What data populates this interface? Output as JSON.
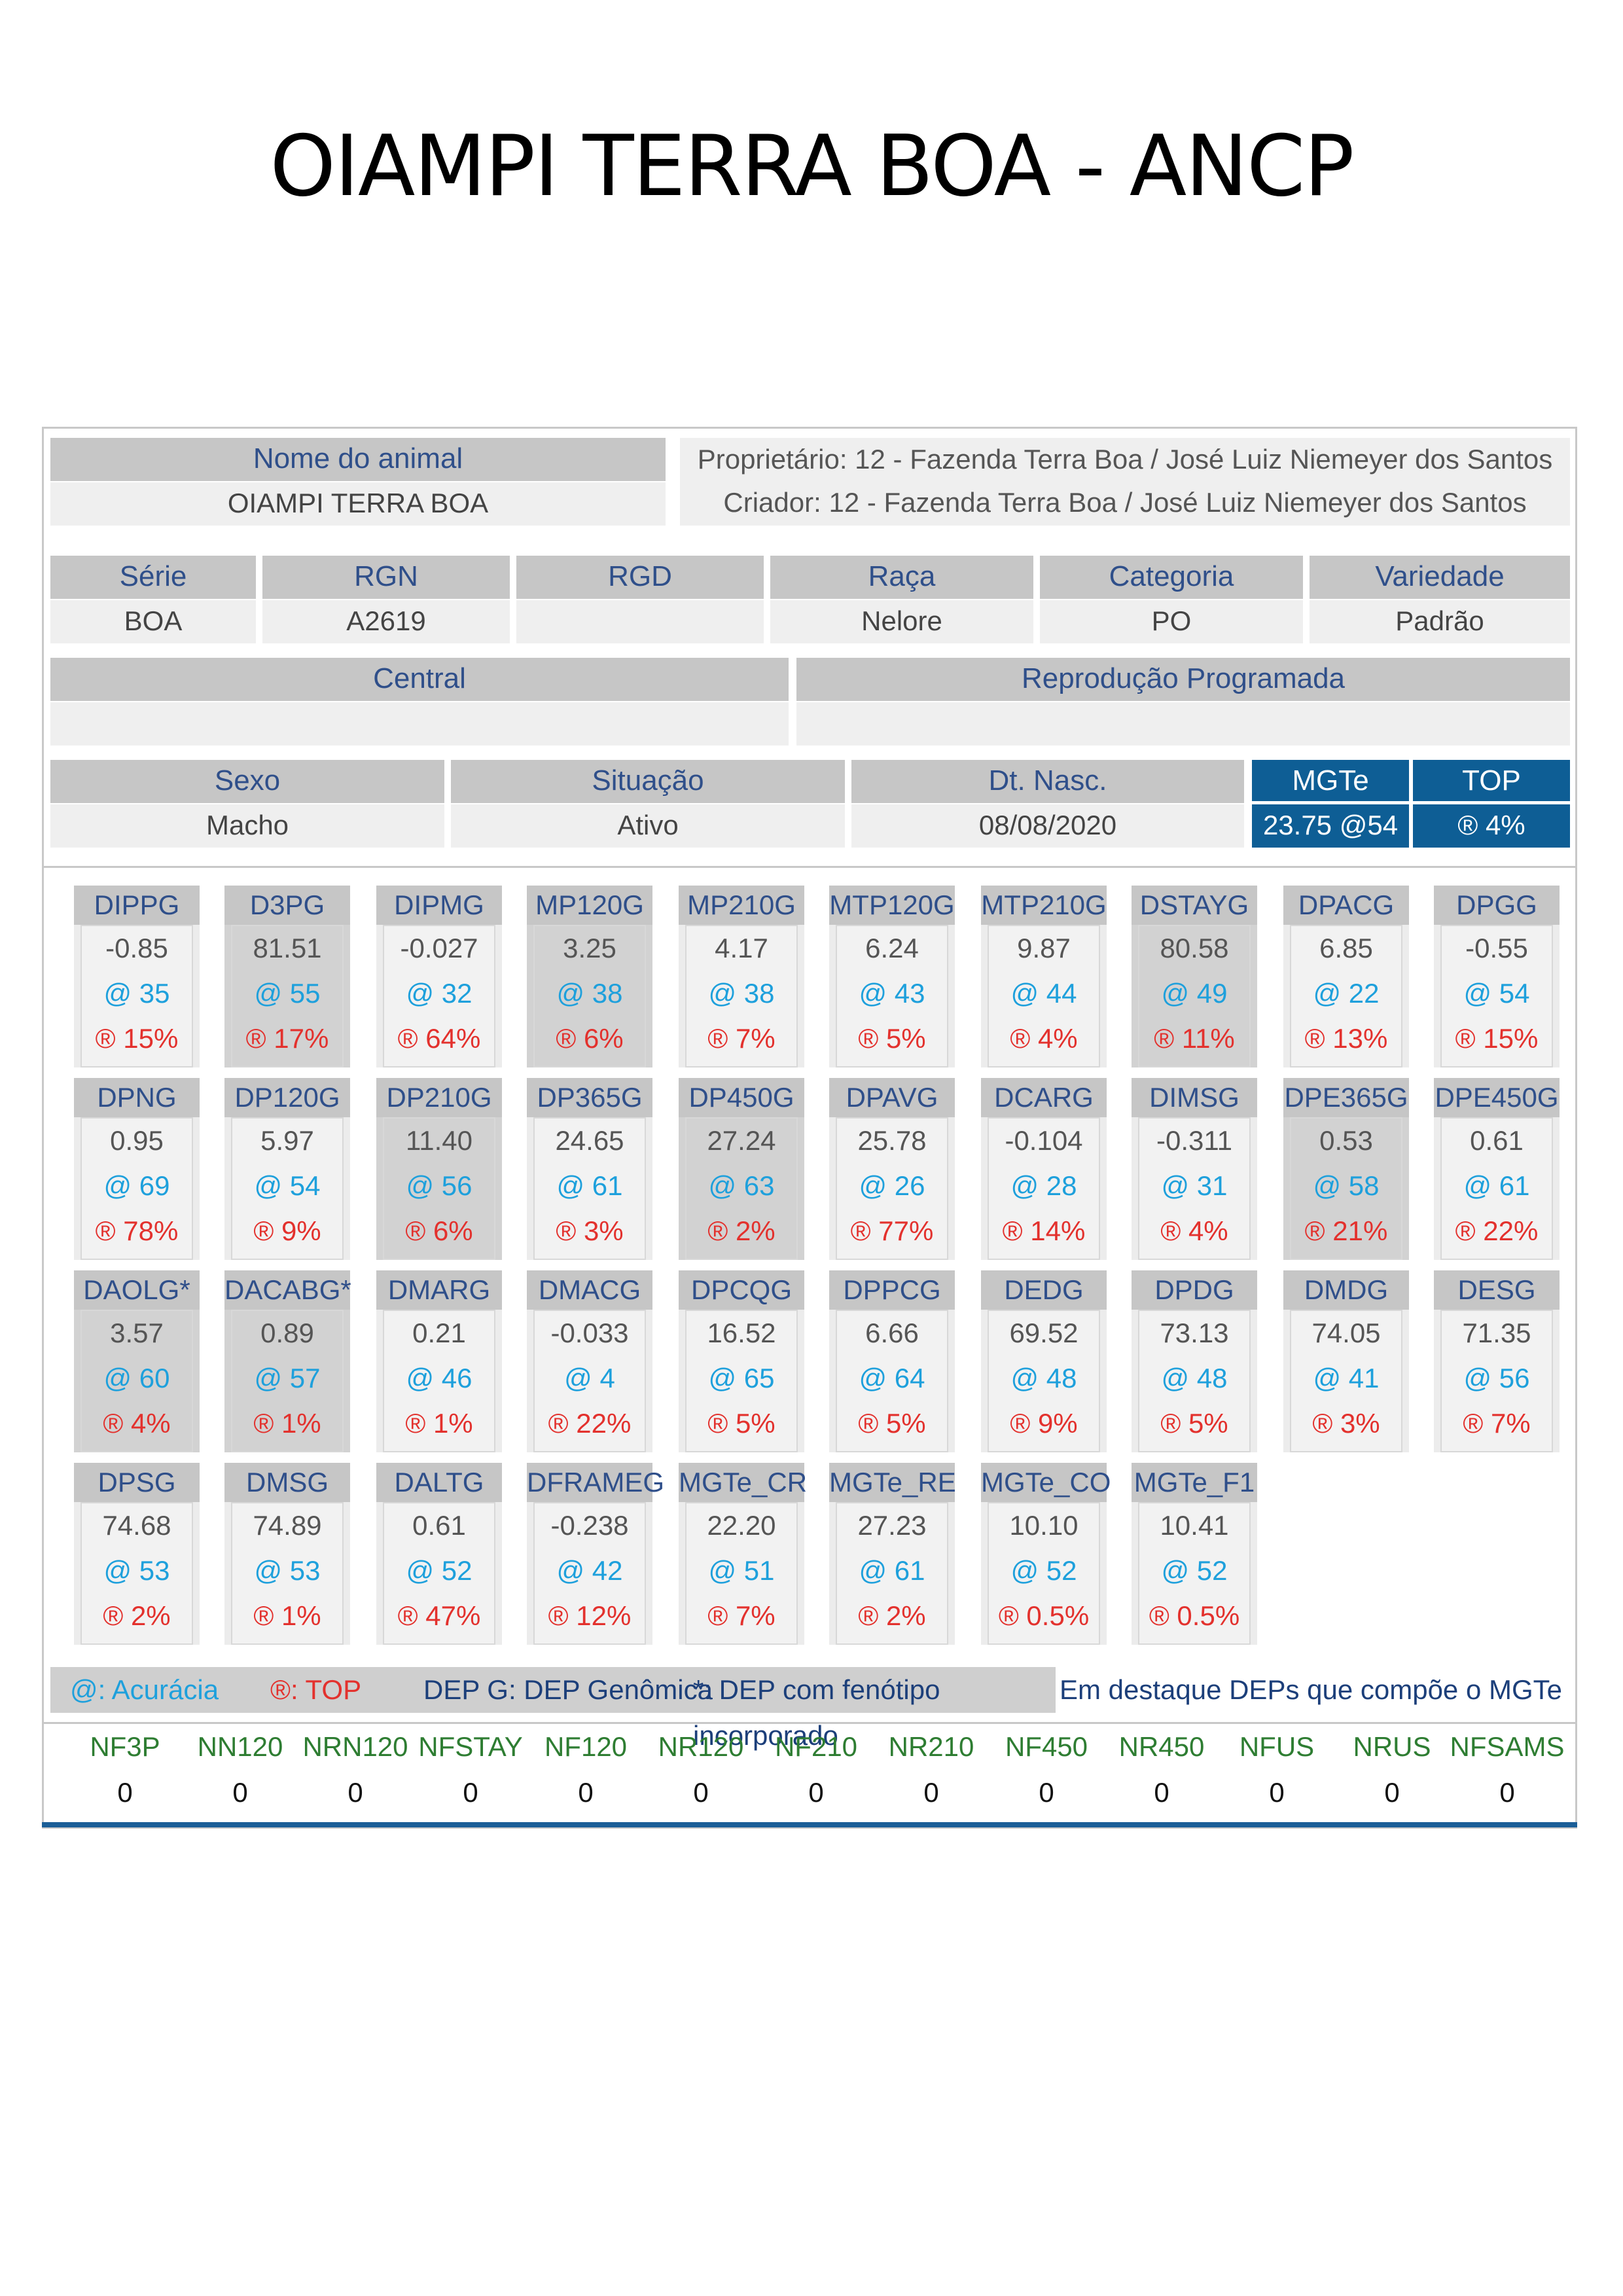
{
  "page_title": "OIAMPI TERRA BOA - ANCP",
  "animal": {
    "name_label": "Nome do animal",
    "name_value": "OIAMPI TERRA BOA",
    "proprietario": "Proprietário: 12 - Fazenda Terra Boa / José Luiz Niemeyer dos Santos",
    "criador": "Criador: 12 - Fazenda Terra Boa / José Luiz Niemeyer dos Santos"
  },
  "info_row1": [
    {
      "label": "Série",
      "value": "BOA"
    },
    {
      "label": "RGN",
      "value": "A2619"
    },
    {
      "label": "RGD",
      "value": ""
    },
    {
      "label": "Raça",
      "value": "Nelore"
    },
    {
      "label": "Categoria",
      "value": "PO"
    },
    {
      "label": "Variedade",
      "value": "Padrão"
    }
  ],
  "info_row2": [
    {
      "label": "Central",
      "value": ""
    },
    {
      "label": "Reprodução Programada",
      "value": ""
    }
  ],
  "info_row3": [
    {
      "label": "Sexo",
      "value": "Macho"
    },
    {
      "label": "Situação",
      "value": "Ativo"
    },
    {
      "label": "Dt. Nasc.",
      "value": "08/08/2020"
    }
  ],
  "mgte": {
    "label": "MGTe",
    "value": "23.75  @54"
  },
  "top": {
    "label": "TOP",
    "value": "® 4%"
  },
  "deps": [
    {
      "name": "DIPPG",
      "value": "-0.85",
      "acc": "@ 35",
      "top": "® 15%",
      "highlight": false
    },
    {
      "name": "D3PG",
      "value": "81.51",
      "acc": "@ 55",
      "top": "® 17%",
      "highlight": true
    },
    {
      "name": "DIPMG",
      "value": "-0.027",
      "acc": "@ 32",
      "top": "® 64%",
      "highlight": false
    },
    {
      "name": "MP120G",
      "value": "3.25",
      "acc": "@ 38",
      "top": "® 6%",
      "highlight": true
    },
    {
      "name": "MP210G",
      "value": "4.17",
      "acc": "@ 38",
      "top": "® 7%",
      "highlight": false
    },
    {
      "name": "MTP120G",
      "value": "6.24",
      "acc": "@ 43",
      "top": "® 5%",
      "highlight": false
    },
    {
      "name": "MTP210G",
      "value": "9.87",
      "acc": "@ 44",
      "top": "® 4%",
      "highlight": false
    },
    {
      "name": "DSTAYG",
      "value": "80.58",
      "acc": "@ 49",
      "top": "® 11%",
      "highlight": true
    },
    {
      "name": "DPACG",
      "value": "6.85",
      "acc": "@ 22",
      "top": "® 13%",
      "highlight": false
    },
    {
      "name": "DPGG",
      "value": "-0.55",
      "acc": "@ 54",
      "top": "® 15%",
      "highlight": false
    },
    {
      "name": "DPNG",
      "value": "0.95",
      "acc": "@ 69",
      "top": "® 78%",
      "highlight": false
    },
    {
      "name": "DP120G",
      "value": "5.97",
      "acc": "@ 54",
      "top": "® 9%",
      "highlight": false
    },
    {
      "name": "DP210G",
      "value": "11.40",
      "acc": "@ 56",
      "top": "® 6%",
      "highlight": true
    },
    {
      "name": "DP365G",
      "value": "24.65",
      "acc": "@ 61",
      "top": "® 3%",
      "highlight": false
    },
    {
      "name": "DP450G",
      "value": "27.24",
      "acc": "@ 63",
      "top": "® 2%",
      "highlight": true
    },
    {
      "name": "DPAVG",
      "value": "25.78",
      "acc": "@ 26",
      "top": "® 77%",
      "highlight": false
    },
    {
      "name": "DCARG",
      "value": "-0.104",
      "acc": "@ 28",
      "top": "® 14%",
      "highlight": false
    },
    {
      "name": "DIMSG",
      "value": "-0.311",
      "acc": "@ 31",
      "top": "® 4%",
      "highlight": false
    },
    {
      "name": "DPE365G",
      "value": "0.53",
      "acc": "@ 58",
      "top": "® 21%",
      "highlight": true
    },
    {
      "name": "DPE450G",
      "value": "0.61",
      "acc": "@ 61",
      "top": "® 22%",
      "highlight": false
    },
    {
      "name": "DAOLG*",
      "value": "3.57",
      "acc": "@ 60",
      "top": "® 4%",
      "highlight": true
    },
    {
      "name": "DACABG*",
      "value": "0.89",
      "acc": "@ 57",
      "top": "® 1%",
      "highlight": true
    },
    {
      "name": "DMARG",
      "value": "0.21",
      "acc": "@ 46",
      "top": "® 1%",
      "highlight": false
    },
    {
      "name": "DMACG",
      "value": "-0.033",
      "acc": "@ 4",
      "top": "® 22%",
      "highlight": false
    },
    {
      "name": "DPCQG",
      "value": "16.52",
      "acc": "@ 65",
      "top": "® 5%",
      "highlight": false
    },
    {
      "name": "DPPCG",
      "value": "6.66",
      "acc": "@ 64",
      "top": "® 5%",
      "highlight": false
    },
    {
      "name": "DEDG",
      "value": "69.52",
      "acc": "@ 48",
      "top": "® 9%",
      "highlight": false
    },
    {
      "name": "DPDG",
      "value": "73.13",
      "acc": "@ 48",
      "top": "® 5%",
      "highlight": false
    },
    {
      "name": "DMDG",
      "value": "74.05",
      "acc": "@ 41",
      "top": "® 3%",
      "highlight": false
    },
    {
      "name": "DESG",
      "value": "71.35",
      "acc": "@ 56",
      "top": "® 7%",
      "highlight": false
    },
    {
      "name": "DPSG",
      "value": "74.68",
      "acc": "@ 53",
      "top": "® 2%",
      "highlight": false
    },
    {
      "name": "DMSG",
      "value": "74.89",
      "acc": "@ 53",
      "top": "® 1%",
      "highlight": false
    },
    {
      "name": "DALTG",
      "value": "0.61",
      "acc": "@ 52",
      "top": "® 47%",
      "highlight": false
    },
    {
      "name": "DFRAMEG",
      "value": "-0.238",
      "acc": "@ 42",
      "top": "® 12%",
      "highlight": false
    },
    {
      "name": "MGTe_CR",
      "value": "22.20",
      "acc": "@ 51",
      "top": "® 7%",
      "highlight": false
    },
    {
      "name": "MGTe_RE",
      "value": "27.23",
      "acc": "@ 61",
      "top": "® 2%",
      "highlight": false
    },
    {
      "name": "MGTe_CO",
      "value": "10.10",
      "acc": "@ 52",
      "top": "® 0.5%",
      "highlight": false
    },
    {
      "name": "MGTe_F1",
      "value": "10.41",
      "acc": "@ 52",
      "top": "® 0.5%",
      "highlight": false
    }
  ],
  "legend": {
    "acc": "@: Acurácia",
    "top": "®: TOP",
    "depg": "DEP G: DEP Genômica",
    "star": "*: DEP com fenótipo incorporado",
    "note": "Em destaque DEPs que compõe o MGTe"
  },
  "colors": {
    "accent_blue": "#0e5e95",
    "acc_text": "#1ea0dc",
    "top_text": "#e3312d",
    "nf_label": "#2e7d32"
  },
  "nf": [
    {
      "label": "NF3P",
      "value": "0"
    },
    {
      "label": "NN120",
      "value": "0"
    },
    {
      "label": "NRN120",
      "value": "0"
    },
    {
      "label": "NFSTAY",
      "value": "0"
    },
    {
      "label": "NF120",
      "value": "0"
    },
    {
      "label": "NR120",
      "value": "0"
    },
    {
      "label": "NF210",
      "value": "0"
    },
    {
      "label": "NR210",
      "value": "0"
    },
    {
      "label": "NF450",
      "value": "0"
    },
    {
      "label": "NR450",
      "value": "0"
    },
    {
      "label": "NFUS",
      "value": "0"
    },
    {
      "label": "NRUS",
      "value": "0"
    },
    {
      "label": "NFSAMS",
      "value": "0"
    }
  ]
}
